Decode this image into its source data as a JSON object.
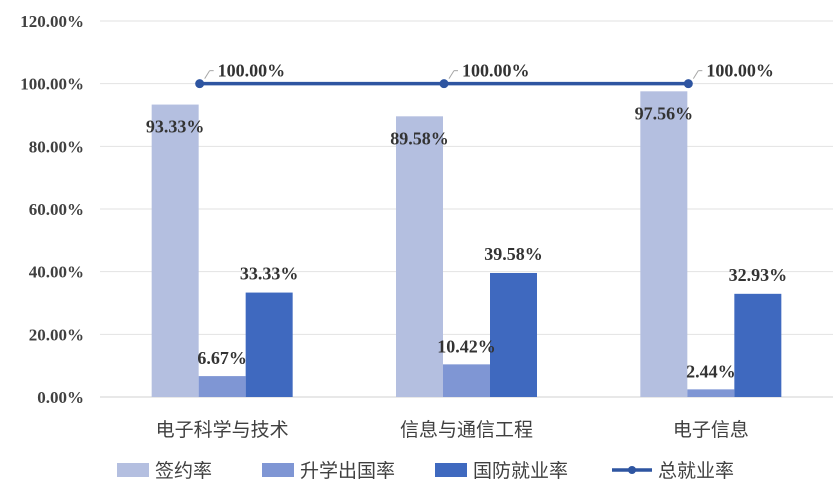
{
  "chart_data": {
    "type": "bar",
    "categories": [
      "电子科学与技术",
      "信息与通信工程",
      "电子信息"
    ],
    "series": [
      {
        "name": "签约率",
        "kind": "bar",
        "color": "#b4bfe0",
        "values": [
          93.33,
          89.58,
          97.56
        ],
        "labels": [
          "93.33%",
          "89.58%",
          "97.56%"
        ]
      },
      {
        "name": "升学出国率",
        "kind": "bar",
        "color": "#7f96d4",
        "values": [
          6.67,
          10.42,
          2.44
        ],
        "labels": [
          "6.67%",
          "10.42%",
          "2.44%"
        ]
      },
      {
        "name": "国防就业率",
        "kind": "bar",
        "color": "#3f69bf",
        "values": [
          33.33,
          39.58,
          32.93
        ],
        "labels": [
          "33.33%",
          "39.58%",
          "32.93%"
        ]
      },
      {
        "name": "总就业率",
        "kind": "line",
        "color": "#2e55a1",
        "values": [
          100,
          100,
          100
        ],
        "labels": [
          "100.00%",
          "100.00%",
          "100.00%"
        ]
      }
    ],
    "ylim": [
      0,
      120
    ],
    "yticks": [
      0,
      20,
      40,
      60,
      80,
      100,
      120
    ],
    "ytick_labels": [
      "0.00%",
      "20.00%",
      "40.00%",
      "60.00%",
      "80.00%",
      "100.00%",
      "120.00%"
    ],
    "grid": true,
    "legend_position": "bottom"
  }
}
